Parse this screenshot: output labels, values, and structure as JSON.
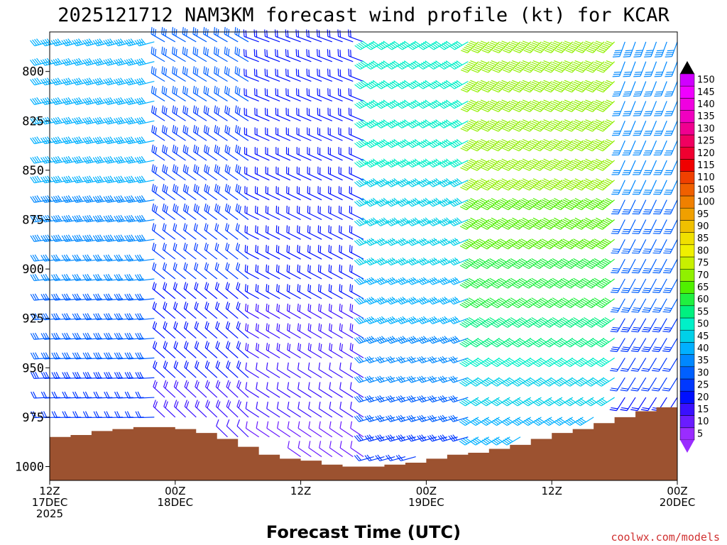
{
  "chart_data": {
    "type": "wind_profile",
    "title": "2025121712 NAM3KM forecast wind profile (kt) for KCAR",
    "xlabel": "Forecast Time (UTC)",
    "credit": "coolwx.com/models",
    "x_range_hours": [
      0,
      60
    ],
    "y_range_hpa": [
      780,
      1007
    ],
    "y_ticks": [
      {
        "value": 800,
        "label": "800"
      },
      {
        "value": 825,
        "label": "825"
      },
      {
        "value": 850,
        "label": "850"
      },
      {
        "value": 875,
        "label": "875"
      },
      {
        "value": 900,
        "label": "900"
      },
      {
        "value": 925,
        "label": "925"
      },
      {
        "value": 950,
        "label": "950"
      },
      {
        "value": 975,
        "label": "975"
      },
      {
        "value": 1000,
        "label": "1000"
      }
    ],
    "x_ticks": [
      {
        "hour": 0,
        "label1": "12Z",
        "label2": "17DEC",
        "label3": "2025"
      },
      {
        "hour": 12,
        "label1": "00Z",
        "label2": "18DEC",
        "label3": ""
      },
      {
        "hour": 24,
        "label1": "12Z",
        "label2": "",
        "label3": ""
      },
      {
        "hour": 36,
        "label1": "00Z",
        "label2": "19DEC",
        "label3": ""
      },
      {
        "hour": 48,
        "label1": "12Z",
        "label2": "",
        "label3": ""
      },
      {
        "hour": 60,
        "label1": "00Z",
        "label2": "20DEC",
        "label3": ""
      }
    ],
    "colorbar": {
      "units": "kt",
      "levels": [
        5,
        10,
        15,
        20,
        25,
        30,
        35,
        40,
        45,
        50,
        55,
        60,
        65,
        70,
        75,
        80,
        85,
        90,
        95,
        100,
        105,
        110,
        115,
        120,
        125,
        130,
        135,
        140,
        145,
        150
      ],
      "labels": [
        "5",
        "10",
        "15",
        "20",
        "25",
        "30",
        "35",
        "40",
        "45",
        "50",
        "55",
        "60",
        "65",
        "70",
        "75",
        "80",
        "85",
        "90",
        "95",
        "100",
        "105",
        "110",
        "115",
        "120",
        "125",
        "130",
        "135",
        "140",
        "145",
        "150"
      ],
      "colors": [
        "#9a2cff",
        "#6a1cff",
        "#3a10ff",
        "#0010ff",
        "#0038ff",
        "#0060ff",
        "#0088ff",
        "#00b0ff",
        "#00d0e8",
        "#00f0c8",
        "#00f080",
        "#20f040",
        "#50f000",
        "#90f000",
        "#c8f000",
        "#f0f000",
        "#f0e000",
        "#f0c000",
        "#f0a000",
        "#f08000",
        "#f06000",
        "#f04000",
        "#f00000",
        "#f00030",
        "#f00060",
        "#f00090",
        "#f000c0",
        "#f000e0",
        "#f000ff",
        "#d000ff"
      ],
      "top_arrow_color": "#000000",
      "bottom_arrow_color": "#9a2cff"
    },
    "surface_pressure_hpa": [
      {
        "hour": 0,
        "p": 985
      },
      {
        "hour": 2,
        "p": 984
      },
      {
        "hour": 4,
        "p": 982
      },
      {
        "hour": 6,
        "p": 981
      },
      {
        "hour": 8,
        "p": 980
      },
      {
        "hour": 10,
        "p": 980
      },
      {
        "hour": 12,
        "p": 981
      },
      {
        "hour": 14,
        "p": 983
      },
      {
        "hour": 16,
        "p": 986
      },
      {
        "hour": 18,
        "p": 990
      },
      {
        "hour": 20,
        "p": 994
      },
      {
        "hour": 22,
        "p": 996
      },
      {
        "hour": 24,
        "p": 997
      },
      {
        "hour": 26,
        "p": 999
      },
      {
        "hour": 28,
        "p": 1000
      },
      {
        "hour": 30,
        "p": 1000
      },
      {
        "hour": 32,
        "p": 999
      },
      {
        "hour": 34,
        "p": 998
      },
      {
        "hour": 36,
        "p": 996
      },
      {
        "hour": 38,
        "p": 994
      },
      {
        "hour": 40,
        "p": 993
      },
      {
        "hour": 42,
        "p": 991
      },
      {
        "hour": 44,
        "p": 989
      },
      {
        "hour": 46,
        "p": 986
      },
      {
        "hour": 48,
        "p": 983
      },
      {
        "hour": 50,
        "p": 981
      },
      {
        "hour": 52,
        "p": 978
      },
      {
        "hour": 54,
        "p": 975
      },
      {
        "hour": 56,
        "p": 972
      },
      {
        "hour": 58,
        "p": 970
      },
      {
        "hour": 60,
        "p": 970
      }
    ],
    "terrain_color": "#9c5230",
    "wind_regimes": [
      {
        "hours": [
          0,
          10
        ],
        "dir_deg": 255,
        "speed_kt": 40
      },
      {
        "hours": [
          11,
          19
        ],
        "dir_deg": 300,
        "speed_kt": 28
      },
      {
        "hours": [
          20,
          30
        ],
        "dir_deg": 290,
        "speed_kt": 22
      },
      {
        "hours": [
          31,
          40
        ],
        "dir_deg": 240,
        "speed_kt": 50
      },
      {
        "hours": [
          41,
          54
        ],
        "dir_deg": 225,
        "speed_kt": 72
      },
      {
        "hours": [
          55,
          60
        ],
        "dir_deg": 200,
        "speed_kt": 35
      }
    ]
  }
}
